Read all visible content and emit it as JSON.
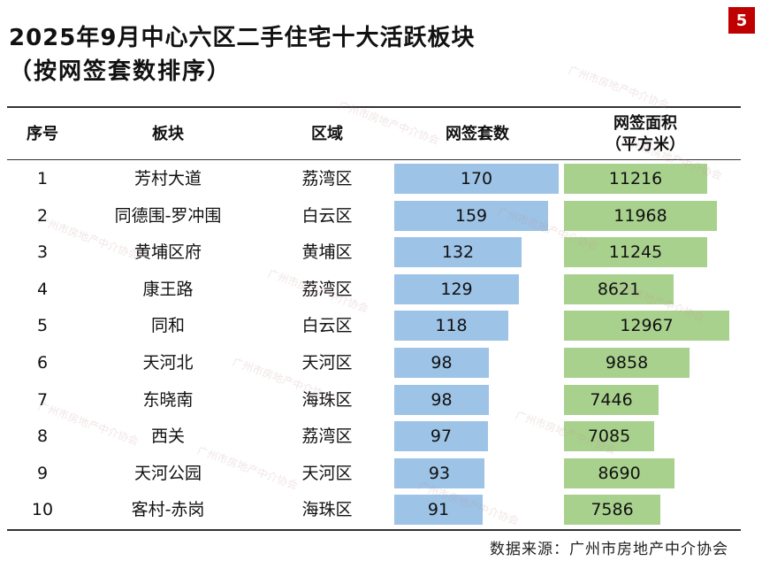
{
  "page_number": "5",
  "title": "2025年9月中心六区二手住宅十大活跃板块",
  "subtitle": "（按网签套数排序）",
  "source": "数据来源：广州市房地产中介协会",
  "colors": {
    "blue_bar": "#9dc3e6",
    "green_bar": "#a9d18e",
    "badge": "#c00000"
  },
  "chart_data": {
    "type": "table",
    "columns": [
      "序号",
      "板块",
      "区域",
      "网签套数",
      "网签面积（平方米）"
    ],
    "rows": [
      {
        "rank": "1",
        "block": "芳村大道",
        "district": "荔湾区",
        "units": 170,
        "area": 11216
      },
      {
        "rank": "2",
        "block": "同德围-罗冲围",
        "district": "白云区",
        "units": 159,
        "area": 11968
      },
      {
        "rank": "3",
        "block": "黄埔区府",
        "district": "黄埔区",
        "units": 132,
        "area": 11245
      },
      {
        "rank": "4",
        "block": "康王路",
        "district": "荔湾区",
        "units": 129,
        "area": 8621
      },
      {
        "rank": "5",
        "block": "同和",
        "district": "白云区",
        "units": 118,
        "area": 12967
      },
      {
        "rank": "6",
        "block": "天河北",
        "district": "天河区",
        "units": 98,
        "area": 9858
      },
      {
        "rank": "7",
        "block": "东晓南",
        "district": "海珠区",
        "units": 98,
        "area": 7446
      },
      {
        "rank": "8",
        "block": "西关",
        "district": "荔湾区",
        "units": 97,
        "area": 7085
      },
      {
        "rank": "9",
        "block": "天河公园",
        "district": "天河区",
        "units": 93,
        "area": 8690
      },
      {
        "rank": "10",
        "block": "客村-赤岗",
        "district": "海珠区",
        "units": 91,
        "area": 7586
      }
    ]
  },
  "headers": {
    "rank": "序号",
    "block": "板块",
    "district": "区域",
    "units": "网签套数",
    "area_line1": "网签面积",
    "area_line2": "（平方米）"
  },
  "watermark": "广州市房地产中介协会"
}
